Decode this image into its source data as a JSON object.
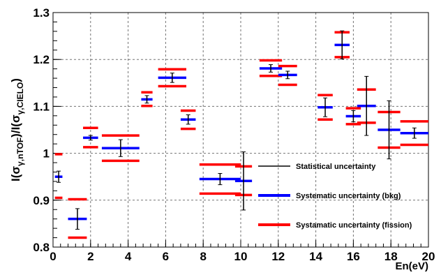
{
  "chart_data": {
    "type": "scatter",
    "title": "",
    "xlabel": "En(eV)",
    "ylabel": {
      "main": "I(σ",
      "sub1": "γ,nTOF",
      "mid": ")/I(σ",
      "sub2": "γ,CIELO",
      "end": ")"
    },
    "xlim": [
      0,
      20
    ],
    "ylim": [
      0.8,
      1.3
    ],
    "x_ticks": [
      "0",
      "2",
      "4",
      "6",
      "8",
      "10",
      "12",
      "14",
      "16",
      "18",
      "20"
    ],
    "y_ticks": [
      "0.8",
      "0.9",
      "1",
      "1.1",
      "1.2",
      "1.3"
    ],
    "grid": true,
    "legend_position": "center-right",
    "colors": {
      "statistical": "#000000",
      "bkg": "#0000ff",
      "fission": "#ff0000"
    },
    "series": [
      {
        "name": "Statistical uncertainty",
        "style": "errorbar"
      },
      {
        "name": "Systematic uncertainty (bkg)",
        "style": "hline"
      },
      {
        "name": "Systamatic uncertainty (fission)",
        "style": "hline"
      }
    ],
    "points": [
      {
        "x0": 0.1,
        "x1": 0.5,
        "y": 0.95,
        "err": 0.012,
        "bkg": [
          0.95
        ],
        "fission": [
          0.998,
          0.905
        ]
      },
      {
        "x0": 0.8,
        "x1": 1.8,
        "y": 0.86,
        "err": 0.022,
        "bkg": [
          0.86
        ],
        "fission": [
          0.902,
          0.82
        ]
      },
      {
        "x0": 1.6,
        "x1": 2.4,
        "y": 1.033,
        "err": 0.005,
        "bkg": [
          1.033
        ],
        "fission": [
          1.054,
          1.013
        ]
      },
      {
        "x0": 2.6,
        "x1": 4.6,
        "y": 1.011,
        "err": 0.018,
        "bkg": [
          1.011
        ],
        "fission": [
          1.038,
          0.984
        ]
      },
      {
        "x0": 4.7,
        "x1": 5.3,
        "y": 1.115,
        "err": 0.008,
        "bkg": [
          1.115
        ],
        "fission": [
          1.13,
          1.101
        ]
      },
      {
        "x0": 5.6,
        "x1": 7.1,
        "y": 1.161,
        "err": 0.01,
        "bkg": [
          1.161
        ],
        "fission": [
          1.179,
          1.143
        ]
      },
      {
        "x0": 6.8,
        "x1": 7.6,
        "y": 1.072,
        "err": 0.01,
        "bkg": [
          1.072
        ],
        "fission": [
          1.091,
          1.052
        ]
      },
      {
        "x0": 7.8,
        "x1": 10.0,
        "y": 0.945,
        "err": 0.012,
        "bkg": [
          0.945
        ],
        "fission": [
          0.976,
          0.914
        ]
      },
      {
        "x0": 9.7,
        "x1": 10.6,
        "y": 0.941,
        "err": 0.062,
        "bkg": [
          0.941
        ],
        "fission": [
          0.972,
          0.911
        ]
      },
      {
        "x0": 11.0,
        "x1": 12.2,
        "y": 1.181,
        "err": 0.008,
        "bkg": [
          1.181
        ],
        "fission": [
          1.198,
          1.165
        ]
      },
      {
        "x0": 12.0,
        "x1": 13.0,
        "y": 1.167,
        "err": 0.008,
        "bkg": [
          1.167
        ],
        "fission": [
          1.186,
          1.146
        ]
      },
      {
        "x0": 14.1,
        "x1": 14.9,
        "y": 1.098,
        "err": 0.02,
        "bkg": [
          1.098
        ],
        "fission": [
          1.124,
          1.072
        ]
      },
      {
        "x0": 15.0,
        "x1": 15.8,
        "y": 1.231,
        "err": 0.03,
        "bkg": [
          1.231
        ],
        "fission": [
          1.258,
          1.205
        ]
      },
      {
        "x0": 15.6,
        "x1": 16.4,
        "y": 1.079,
        "err": 0.012,
        "bkg": [
          1.079
        ],
        "fission": [
          1.096,
          1.062
        ]
      },
      {
        "x0": 16.2,
        "x1": 17.2,
        "y": 1.101,
        "err": 0.063,
        "bkg": [
          1.101
        ],
        "fission": [
          1.136,
          1.065
        ]
      },
      {
        "x0": 17.3,
        "x1": 18.5,
        "y": 1.05,
        "err": 0.062,
        "bkg": [
          1.05
        ],
        "fission": [
          1.088,
          1.012
        ]
      },
      {
        "x0": 18.5,
        "x1": 20.0,
        "y": 1.043,
        "err": 0.011,
        "bkg": [
          1.043
        ],
        "fission": [
          1.068,
          1.018
        ]
      }
    ]
  }
}
